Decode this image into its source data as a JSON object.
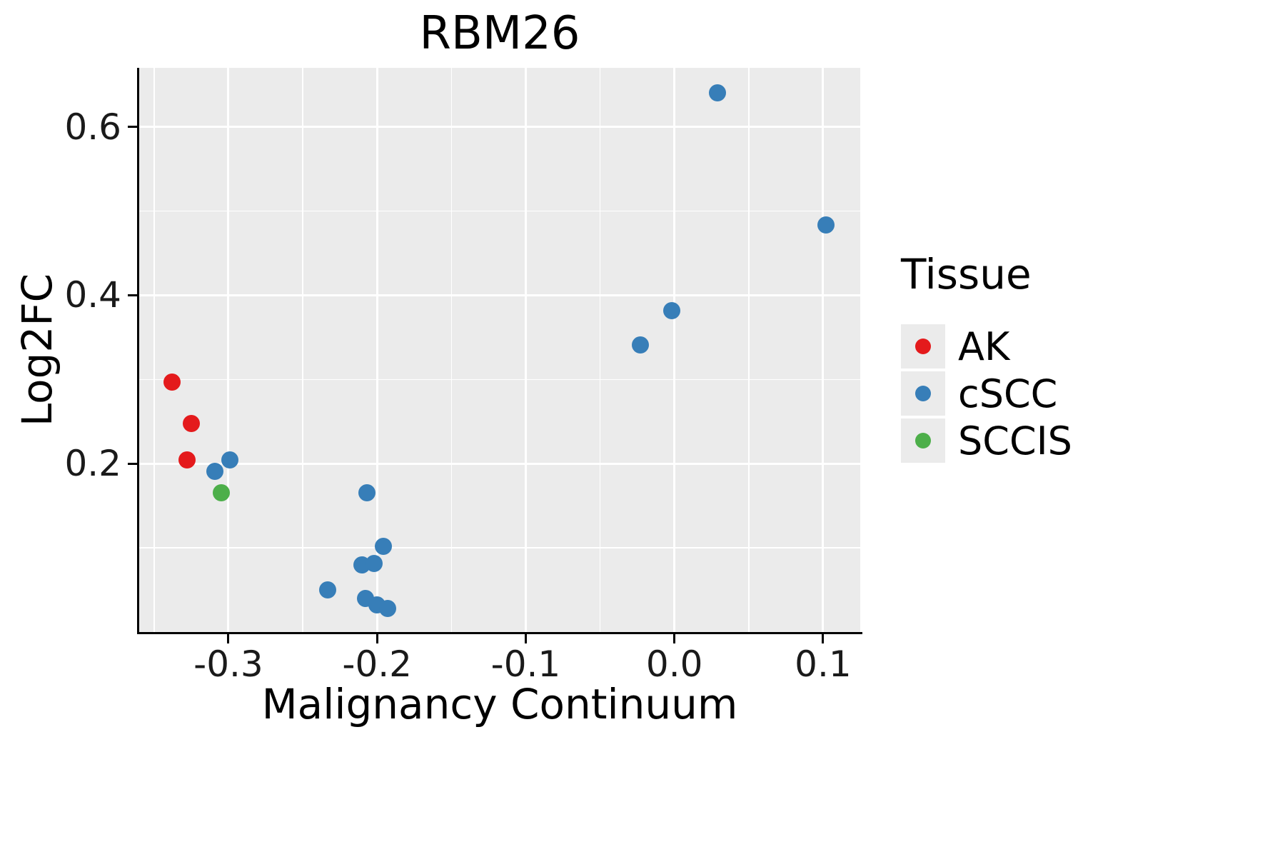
{
  "title": "RBM26",
  "axes": {
    "x_label": "Malignancy Continuum",
    "y_label": "Log2FC"
  },
  "legend": {
    "title": "Tissue",
    "entries": [
      {
        "label": "AK",
        "color": "#E41A1C"
      },
      {
        "label": "cSCC",
        "color": "#377EB8"
      },
      {
        "label": "SCCIS",
        "color": "#4DAF4A"
      }
    ]
  },
  "colors": {
    "panel_background": "#EBEBEB",
    "gridline": "#ffffff",
    "axis_line": "#000000"
  },
  "chart_data": {
    "type": "scatter",
    "title": "RBM26",
    "xlabel": "Malignancy Continuum",
    "ylabel": "Log2FC",
    "xlim": [
      -0.36,
      0.125
    ],
    "ylim": [
      0,
      0.67
    ],
    "grid": true,
    "legend_position": "right",
    "x_major_ticks": [
      {
        "value": -0.3,
        "label": "-0.3"
      },
      {
        "value": -0.2,
        "label": "-0.2"
      },
      {
        "value": -0.1,
        "label": "-0.1"
      },
      {
        "value": 0.0,
        "label": "0.0"
      },
      {
        "value": 0.1,
        "label": "0.1"
      }
    ],
    "x_minor_ticks": [
      -0.35,
      -0.25,
      -0.15,
      -0.05,
      0.05
    ],
    "y_major_ticks": [
      {
        "value": 0.2,
        "label": "0.2"
      },
      {
        "value": 0.4,
        "label": "0.4"
      },
      {
        "value": 0.6,
        "label": "0.6"
      }
    ],
    "y_minor_ticks": [
      0.1,
      0.3,
      0.5
    ],
    "series": [
      {
        "name": "AK",
        "color": "#E41A1C",
        "points": [
          [
            -0.338,
            0.297
          ],
          [
            -0.325,
            0.248
          ],
          [
            -0.328,
            0.204
          ]
        ]
      },
      {
        "name": "cSCC",
        "color": "#377EB8",
        "points": [
          [
            -0.309,
            0.191
          ],
          [
            -0.299,
            0.204
          ],
          [
            0.029,
            0.64
          ],
          [
            0.102,
            0.483
          ],
          [
            -0.002,
            0.382
          ],
          [
            -0.023,
            0.341
          ],
          [
            -0.207,
            0.165
          ],
          [
            -0.196,
            0.102
          ],
          [
            -0.21,
            0.08
          ],
          [
            -0.202,
            0.081
          ],
          [
            -0.233,
            0.05
          ],
          [
            -0.208,
            0.04
          ],
          [
            -0.2,
            0.032
          ],
          [
            -0.193,
            0.028
          ]
        ]
      },
      {
        "name": "SCCIS",
        "color": "#4DAF4A",
        "points": [
          [
            -0.305,
            0.165
          ]
        ]
      }
    ]
  }
}
